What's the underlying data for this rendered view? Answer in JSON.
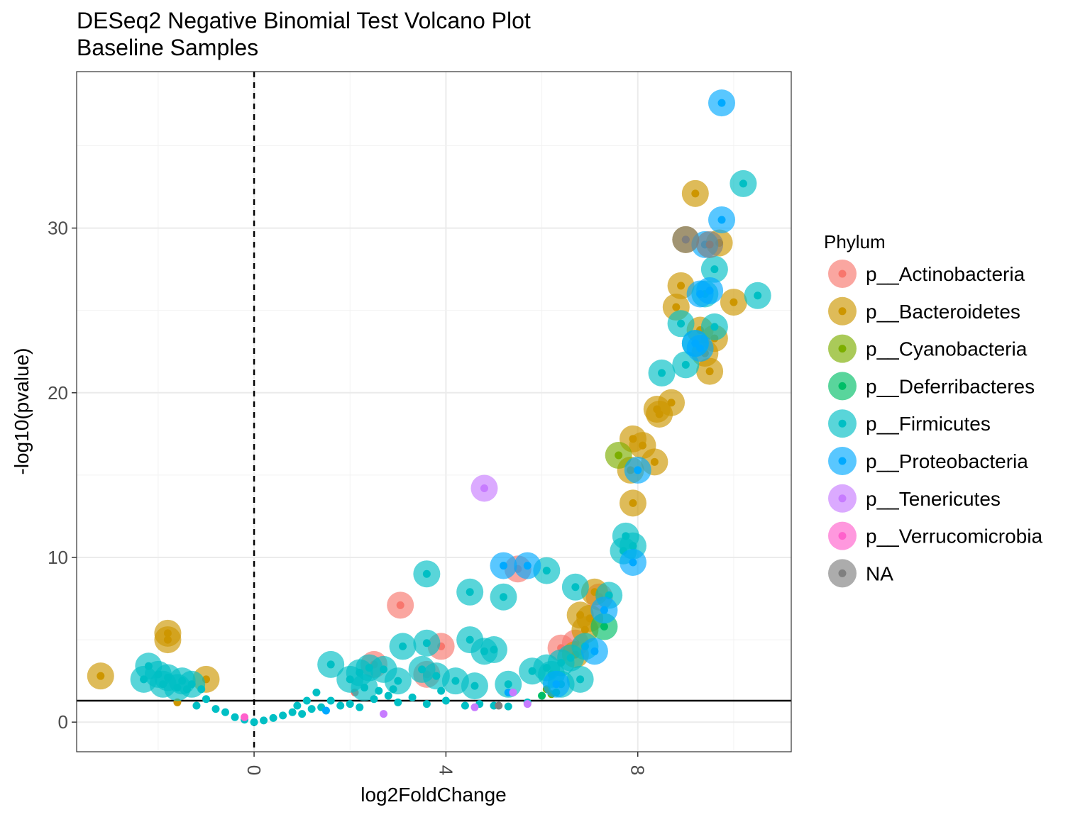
{
  "chart_data": {
    "type": "scatter",
    "title": "DESeq2 Negative Binomial Test Volcano Plot",
    "subtitle": "Baseline Samples",
    "xlabel": "log2FoldChange",
    "ylabel": "-log10(pvalue)",
    "xlim": [
      -3.7,
      11.2
    ],
    "ylim": [
      -1.8,
      39.5
    ],
    "x_ticks": [
      0,
      4,
      8
    ],
    "x_tick_labels": [
      "0",
      "4",
      "8"
    ],
    "y_ticks": [
      0,
      10,
      20,
      30
    ],
    "y_tick_labels": [
      "0",
      "10",
      "20",
      "30"
    ],
    "grid": true,
    "vline_dashed_x": 0,
    "hline_y": 1.3,
    "legend": {
      "title": "Phylum",
      "position": "right",
      "entries": [
        {
          "name": "p__Actinobacteria",
          "color": "#F8766D"
        },
        {
          "name": "p__Bacteroidetes",
          "color": "#CD9600"
        },
        {
          "name": "p__Cyanobacteria",
          "color": "#7CAE00"
        },
        {
          "name": "p__Deferribacteres",
          "color": "#00BE67"
        },
        {
          "name": "p__Firmicutes",
          "color": "#00BFC4"
        },
        {
          "name": "p__Proteobacteria",
          "color": "#00A9FF"
        },
        {
          "name": "p__Tenericutes",
          "color": "#C77CFF"
        },
        {
          "name": "p__Verrucomicrobia",
          "color": "#FF61CC"
        },
        {
          "name": "NA",
          "color": "#7F7F7F"
        }
      ]
    },
    "series": [
      {
        "name": "p__Actinobacteria",
        "points": [
          [
            3.05,
            7.1
          ],
          [
            5.5,
            9.3
          ],
          [
            7.2,
            7.6
          ],
          [
            6.4,
            4.5
          ],
          [
            6.7,
            4.8
          ],
          [
            3.6,
            2.9
          ],
          [
            3.9,
            4.6
          ],
          [
            2.5,
            3.5
          ],
          [
            2.1,
            1.8
          ]
        ]
      },
      {
        "name": "p__Bacteroidetes",
        "points": [
          [
            -3.2,
            2.8
          ],
          [
            -1.8,
            5.4
          ],
          [
            -1.8,
            5.0
          ],
          [
            -1.0,
            2.6
          ],
          [
            -1.6,
            1.2
          ],
          [
            9.2,
            32.1
          ],
          [
            9.0,
            29.3
          ],
          [
            9.7,
            29.1
          ],
          [
            8.9,
            26.5
          ],
          [
            8.8,
            25.2
          ],
          [
            10.0,
            25.5
          ],
          [
            9.6,
            23.3
          ],
          [
            9.3,
            23.8
          ],
          [
            9.5,
            21.3
          ],
          [
            9.4,
            22.4
          ],
          [
            8.7,
            19.4
          ],
          [
            8.4,
            19.0
          ],
          [
            8.45,
            18.7
          ],
          [
            7.9,
            17.2
          ],
          [
            8.1,
            16.8
          ],
          [
            8.35,
            15.8
          ],
          [
            7.85,
            15.3
          ],
          [
            7.9,
            13.3
          ],
          [
            7.1,
            7.9
          ],
          [
            6.8,
            6.5
          ],
          [
            7.0,
            6.3
          ],
          [
            6.9,
            5.6
          ],
          [
            6.7,
            4.1
          ]
        ]
      },
      {
        "name": "p__Cyanobacteria",
        "points": [
          [
            7.6,
            16.2
          ],
          [
            6.1,
            2.0
          ],
          [
            6.2,
            1.7
          ]
        ]
      },
      {
        "name": "p__Deferribacteres",
        "points": [
          [
            7.3,
            5.8
          ],
          [
            6.3,
            1.8
          ],
          [
            6.0,
            1.6
          ]
        ]
      },
      {
        "name": "p__Firmicutes",
        "points": [
          [
            10.2,
            32.7
          ],
          [
            10.5,
            25.9
          ],
          [
            9.6,
            27.5
          ],
          [
            9.4,
            26.0
          ],
          [
            8.9,
            24.2
          ],
          [
            9.6,
            24.0
          ],
          [
            9.2,
            23.0
          ],
          [
            9.0,
            21.7
          ],
          [
            8.5,
            21.2
          ],
          [
            7.75,
            11.3
          ],
          [
            7.7,
            10.4
          ],
          [
            7.9,
            10.7
          ],
          [
            3.6,
            9.0
          ],
          [
            6.1,
            9.2
          ],
          [
            4.5,
            7.9
          ],
          [
            5.2,
            7.6
          ],
          [
            6.7,
            8.2
          ],
          [
            7.4,
            7.7
          ],
          [
            3.1,
            4.6
          ],
          [
            3.6,
            4.8
          ],
          [
            4.5,
            5.0
          ],
          [
            4.8,
            4.3
          ],
          [
            5.0,
            4.4
          ],
          [
            1.6,
            3.5
          ],
          [
            2.2,
            3.0
          ],
          [
            2.4,
            3.3
          ],
          [
            2.7,
            3.2
          ],
          [
            3.0,
            2.5
          ],
          [
            2.9,
            2.0
          ],
          [
            2.0,
            2.6
          ],
          [
            2.3,
            2.1
          ],
          [
            2.6,
            1.9
          ],
          [
            3.5,
            3.2
          ],
          [
            3.8,
            2.8
          ],
          [
            4.2,
            2.5
          ],
          [
            4.6,
            2.2
          ],
          [
            3.9,
            1.9
          ],
          [
            5.3,
            2.3
          ],
          [
            5.8,
            3.1
          ],
          [
            6.1,
            3.3
          ],
          [
            6.4,
            3.6
          ],
          [
            6.6,
            3.9
          ],
          [
            6.8,
            2.6
          ],
          [
            6.4,
            2.3
          ],
          [
            6.2,
            2.9
          ],
          [
            6.9,
            4.6
          ],
          [
            -2.3,
            2.6
          ],
          [
            -2.2,
            3.4
          ],
          [
            -2.0,
            2.9
          ],
          [
            -1.8,
            2.7
          ],
          [
            -1.5,
            2.5
          ],
          [
            -1.3,
            2.3
          ],
          [
            -1.6,
            2.1
          ],
          [
            -1.1,
            2.0
          ],
          [
            -1.9,
            2.3
          ],
          [
            -1.4,
            2.0
          ],
          [
            -1.2,
            1.0
          ],
          [
            -1.0,
            1.4
          ],
          [
            -0.8,
            0.8
          ],
          [
            -0.6,
            0.6
          ],
          [
            -0.4,
            0.3
          ],
          [
            -0.2,
            0.15
          ],
          [
            0.0,
            0.0
          ],
          [
            0.2,
            0.1
          ],
          [
            0.4,
            0.25
          ],
          [
            0.6,
            0.4
          ],
          [
            0.8,
            0.6
          ],
          [
            1.0,
            0.5
          ],
          [
            1.2,
            0.8
          ],
          [
            1.4,
            0.9
          ],
          [
            1.6,
            1.3
          ],
          [
            1.8,
            1.0
          ],
          [
            2.0,
            1.1
          ],
          [
            2.2,
            0.9
          ],
          [
            2.5,
            1.4
          ],
          [
            2.8,
            1.6
          ],
          [
            3.0,
            1.2
          ],
          [
            3.3,
            1.5
          ],
          [
            3.6,
            1.1
          ],
          [
            4.0,
            1.3
          ],
          [
            4.4,
            1.0
          ],
          [
            4.7,
            1.1
          ],
          [
            5.0,
            1.0
          ],
          [
            5.3,
            0.95
          ],
          [
            5.7,
            1.2
          ],
          [
            1.1,
            1.3
          ],
          [
            1.3,
            1.8
          ],
          [
            0.9,
            1.0
          ]
        ]
      },
      {
        "name": "p__Proteobacteria",
        "points": [
          [
            9.75,
            37.6
          ],
          [
            9.75,
            30.5
          ],
          [
            9.4,
            29.0
          ],
          [
            9.5,
            26.2
          ],
          [
            9.3,
            26.0
          ],
          [
            9.2,
            23.0
          ],
          [
            9.3,
            22.7
          ],
          [
            8.0,
            15.3
          ],
          [
            7.9,
            9.7
          ],
          [
            5.2,
            9.5
          ],
          [
            5.7,
            9.5
          ],
          [
            7.3,
            6.8
          ],
          [
            7.1,
            4.3
          ],
          [
            5.3,
            1.8
          ],
          [
            6.3,
            2.3
          ],
          [
            1.5,
            0.7
          ]
        ]
      },
      {
        "name": "p__Tenericutes",
        "points": [
          [
            4.8,
            14.2
          ],
          [
            5.4,
            1.8
          ],
          [
            2.7,
            0.5
          ],
          [
            4.6,
            0.9
          ],
          [
            5.7,
            1.1
          ]
        ]
      },
      {
        "name": "p__Verrucomicrobia",
        "points": [
          [
            -0.2,
            0.3
          ]
        ]
      },
      {
        "name": "NA",
        "points": [
          [
            5.1,
            1.0
          ],
          [
            9.0,
            29.3
          ],
          [
            9.5,
            29.0
          ]
        ]
      }
    ]
  }
}
